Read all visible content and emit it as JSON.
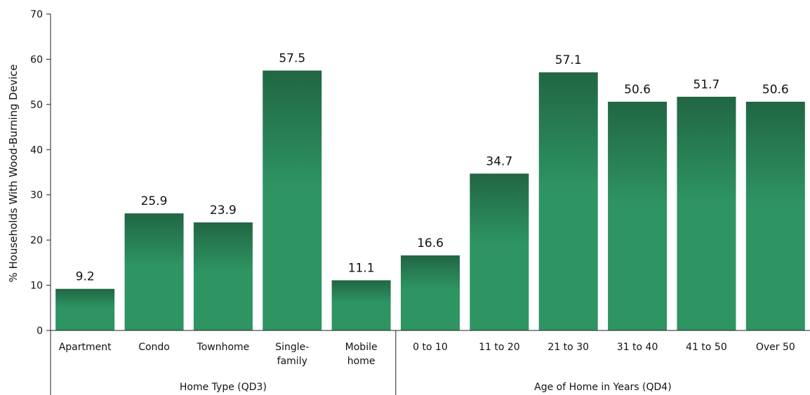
{
  "chart_data": {
    "type": "bar",
    "ylabel": "% Households With Wood-Burning Device",
    "ylim": [
      0,
      70
    ],
    "yticks": [
      0,
      10,
      20,
      30,
      40,
      50,
      60,
      70
    ],
    "grid": false,
    "categories": [
      [
        "Apartment"
      ],
      [
        "Condo"
      ],
      [
        "Townhome"
      ],
      [
        "Single-",
        "family"
      ],
      [
        "Mobile",
        "home"
      ],
      [
        "0 to 10"
      ],
      [
        "11 to 20"
      ],
      [
        "21 to 30"
      ],
      [
        "31 to 40"
      ],
      [
        "41 to 50"
      ],
      [
        "Over 50"
      ]
    ],
    "values": [
      9.2,
      25.9,
      23.9,
      57.5,
      11.1,
      16.6,
      34.7,
      57.1,
      50.6,
      51.7,
      50.6
    ],
    "value_labels": [
      "9.2",
      "25.9",
      "23.9",
      "57.5",
      "11.1",
      "16.6",
      "34.7",
      "57.1",
      "50.6",
      "51.7",
      "50.6"
    ],
    "groups": [
      {
        "label": "Home Type (QD3)",
        "start": 0,
        "end": 4
      },
      {
        "label": "Age of Home in Years (QD4)",
        "start": 5,
        "end": 10
      }
    ],
    "bar_color_top": "#216644",
    "bar_color_bottom": "#2e9462"
  }
}
